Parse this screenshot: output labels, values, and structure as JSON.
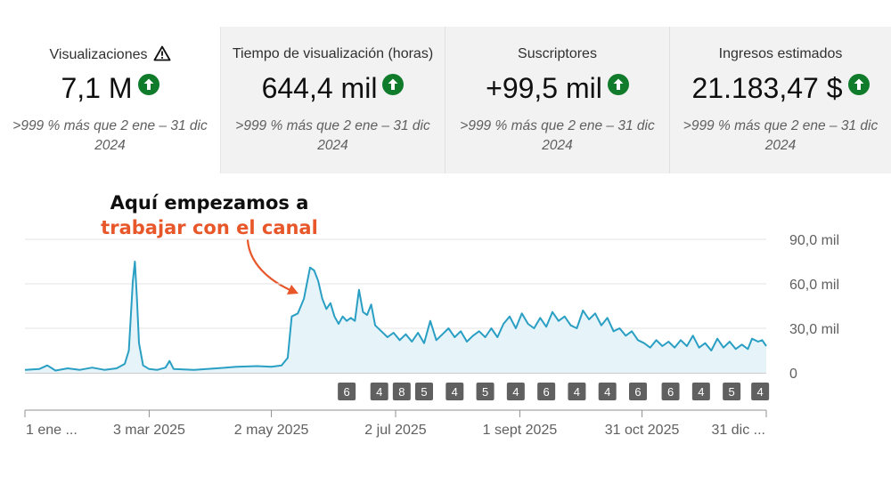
{
  "metrics": [
    {
      "label": "Visualizaciones",
      "value": "7,1 M",
      "comparison_line1": ">999 % más que 2 ene – 31 dic",
      "comparison_line2": "2024",
      "warning_icon": "warning-triangle-icon",
      "trend_icon": "arrow-up-icon"
    },
    {
      "label": "Tiempo de visualización (horas)",
      "value": "644,4 mil",
      "comparison_line1": ">999 % más que 2 ene – 31 dic",
      "comparison_line2": "2024",
      "trend_icon": "arrow-up-icon"
    },
    {
      "label": "Suscriptores",
      "value": "+99,5 mil",
      "comparison_line1": ">999 % más que 2 ene – 31 dic",
      "comparison_line2": "2024",
      "trend_icon": "arrow-up-icon"
    },
    {
      "label": "Ingresos estimados",
      "value": "21.183,47 $",
      "comparison_line1": ">999 % más que 2 ene – 31 dic",
      "comparison_line2": "2024",
      "trend_icon": "arrow-up-icon"
    }
  ],
  "annotation": {
    "line1": "Aquí empezamos a",
    "line2": "trabajar con el canal",
    "line1_color": "#0f0f0f",
    "line2_color": "#e8572a"
  },
  "colors": {
    "positive": "#0f7b2b",
    "line": "#2a9fc4",
    "area": "#e6f3f8",
    "badge": "#606060"
  },
  "chart_data": {
    "type": "area",
    "ylim": [
      0,
      90000
    ],
    "y_ticks": [
      {
        "value": 0,
        "label": "0"
      },
      {
        "value": 30000,
        "label": "30,0 mil"
      },
      {
        "value": 60000,
        "label": "60,0 mil"
      },
      {
        "value": 90000,
        "label": "90,0 mil"
      }
    ],
    "x_ticks": [
      {
        "date": "2025-01-01",
        "label": "1 ene ..."
      },
      {
        "date": "2025-03-03",
        "label": "3 mar 2025"
      },
      {
        "date": "2025-05-02",
        "label": "2 may 2025"
      },
      {
        "date": "2025-07-02",
        "label": "2 jul 2025"
      },
      {
        "date": "2025-09-01",
        "label": "1 sept 2025"
      },
      {
        "date": "2025-10-31",
        "label": "31 oct 2025"
      },
      {
        "date": "2025-12-31",
        "label": "31 dic ..."
      }
    ],
    "series": [
      {
        "points": [
          [
            "2025-01-01",
            2000
          ],
          [
            "2025-01-08",
            2500
          ],
          [
            "2025-01-12",
            5000
          ],
          [
            "2025-01-16",
            1500
          ],
          [
            "2025-01-22",
            3000
          ],
          [
            "2025-01-28",
            2000
          ],
          [
            "2025-02-03",
            3500
          ],
          [
            "2025-02-09",
            2000
          ],
          [
            "2025-02-15",
            3000
          ],
          [
            "2025-02-19",
            6000
          ],
          [
            "2025-02-21",
            15000
          ],
          [
            "2025-02-23",
            62000
          ],
          [
            "2025-02-24",
            75000
          ],
          [
            "2025-02-25",
            50000
          ],
          [
            "2025-02-26",
            20000
          ],
          [
            "2025-02-28",
            5000
          ],
          [
            "2025-03-03",
            2500
          ],
          [
            "2025-03-07",
            2000
          ],
          [
            "2025-03-11",
            3500
          ],
          [
            "2025-03-13",
            8000
          ],
          [
            "2025-03-15",
            2500
          ],
          [
            "2025-03-25",
            2000
          ],
          [
            "2025-04-05",
            3000
          ],
          [
            "2025-04-15",
            4000
          ],
          [
            "2025-04-25",
            4500
          ],
          [
            "2025-05-02",
            4000
          ],
          [
            "2025-05-07",
            5000
          ],
          [
            "2025-05-10",
            10000
          ],
          [
            "2025-05-12",
            38000
          ],
          [
            "2025-05-15",
            40000
          ],
          [
            "2025-05-18",
            50000
          ],
          [
            "2025-05-21",
            71000
          ],
          [
            "2025-05-23",
            69000
          ],
          [
            "2025-05-25",
            62000
          ],
          [
            "2025-05-27",
            50000
          ],
          [
            "2025-05-29",
            43000
          ],
          [
            "2025-05-31",
            47000
          ],
          [
            "2025-06-02",
            38000
          ],
          [
            "2025-06-04",
            33000
          ],
          [
            "2025-06-06",
            38000
          ],
          [
            "2025-06-08",
            35000
          ],
          [
            "2025-06-10",
            37000
          ],
          [
            "2025-06-12",
            35000
          ],
          [
            "2025-06-14",
            56000
          ],
          [
            "2025-06-16",
            41000
          ],
          [
            "2025-06-18",
            39000
          ],
          [
            "2025-06-20",
            46000
          ],
          [
            "2025-06-22",
            32000
          ],
          [
            "2025-06-25",
            28000
          ],
          [
            "2025-06-28",
            24000
          ],
          [
            "2025-07-01",
            27000
          ],
          [
            "2025-07-04",
            22000
          ],
          [
            "2025-07-07",
            26000
          ],
          [
            "2025-07-10",
            21000
          ],
          [
            "2025-07-13",
            27000
          ],
          [
            "2025-07-16",
            20000
          ],
          [
            "2025-07-19",
            35000
          ],
          [
            "2025-07-22",
            22000
          ],
          [
            "2025-07-25",
            26000
          ],
          [
            "2025-07-28",
            30000
          ],
          [
            "2025-07-31",
            24000
          ],
          [
            "2025-08-03",
            28000
          ],
          [
            "2025-08-06",
            21000
          ],
          [
            "2025-08-09",
            25000
          ],
          [
            "2025-08-12",
            28000
          ],
          [
            "2025-08-15",
            24000
          ],
          [
            "2025-08-18",
            30000
          ],
          [
            "2025-08-21",
            24000
          ],
          [
            "2025-08-24",
            33000
          ],
          [
            "2025-08-27",
            38000
          ],
          [
            "2025-08-30",
            30000
          ],
          [
            "2025-09-02",
            40000
          ],
          [
            "2025-09-05",
            33000
          ],
          [
            "2025-09-08",
            30000
          ],
          [
            "2025-09-11",
            37000
          ],
          [
            "2025-09-14",
            31000
          ],
          [
            "2025-09-17",
            41000
          ],
          [
            "2025-09-20",
            35000
          ],
          [
            "2025-09-23",
            38000
          ],
          [
            "2025-09-26",
            32000
          ],
          [
            "2025-09-29",
            30000
          ],
          [
            "2025-10-02",
            42000
          ],
          [
            "2025-10-05",
            36000
          ],
          [
            "2025-10-08",
            40000
          ],
          [
            "2025-10-11",
            32000
          ],
          [
            "2025-10-14",
            37000
          ],
          [
            "2025-10-17",
            28000
          ],
          [
            "2025-10-20",
            30000
          ],
          [
            "2025-10-23",
            25000
          ],
          [
            "2025-10-26",
            28000
          ],
          [
            "2025-10-29",
            22000
          ],
          [
            "2025-11-01",
            20000
          ],
          [
            "2025-11-04",
            17000
          ],
          [
            "2025-11-07",
            22000
          ],
          [
            "2025-11-10",
            18000
          ],
          [
            "2025-11-13",
            21000
          ],
          [
            "2025-11-16",
            17000
          ],
          [
            "2025-11-19",
            22000
          ],
          [
            "2025-11-22",
            18000
          ],
          [
            "2025-11-25",
            25000
          ],
          [
            "2025-11-28",
            17000
          ],
          [
            "2025-12-01",
            20000
          ],
          [
            "2025-12-04",
            15000
          ],
          [
            "2025-12-07",
            23000
          ],
          [
            "2025-12-10",
            17000
          ],
          [
            "2025-12-13",
            21000
          ],
          [
            "2025-12-16",
            16000
          ],
          [
            "2025-12-19",
            19000
          ],
          [
            "2025-12-22",
            16000
          ],
          [
            "2025-12-24",
            23000
          ],
          [
            "2025-12-27",
            21000
          ],
          [
            "2025-12-29",
            22000
          ],
          [
            "2025-12-31",
            18000
          ]
        ]
      }
    ],
    "badges": [
      {
        "date": "2025-06-08",
        "label": "6"
      },
      {
        "date": "2025-06-24",
        "label": "4"
      },
      {
        "date": "2025-07-05",
        "label": "8"
      },
      {
        "date": "2025-07-16",
        "label": "5"
      },
      {
        "date": "2025-07-31",
        "label": "4"
      },
      {
        "date": "2025-08-15",
        "label": "5"
      },
      {
        "date": "2025-08-30",
        "label": "4"
      },
      {
        "date": "2025-09-14",
        "label": "6"
      },
      {
        "date": "2025-09-29",
        "label": "4"
      },
      {
        "date": "2025-10-14",
        "label": "4"
      },
      {
        "date": "2025-10-29",
        "label": "6"
      },
      {
        "date": "2025-11-14",
        "label": "6"
      },
      {
        "date": "2025-11-29",
        "label": "4"
      },
      {
        "date": "2025-12-14",
        "label": "5"
      },
      {
        "date": "2025-12-28",
        "label": "4"
      }
    ],
    "grid": true,
    "y_axis_position": "right"
  }
}
